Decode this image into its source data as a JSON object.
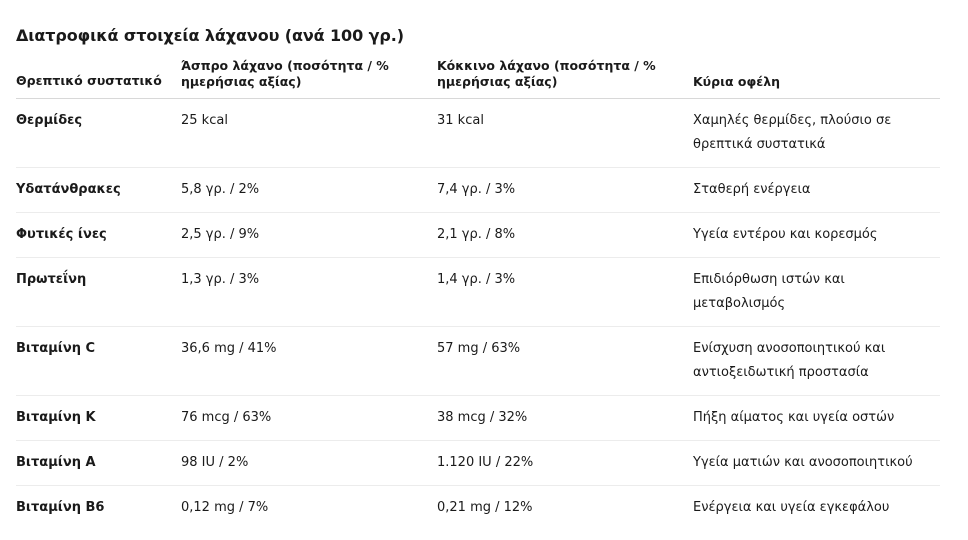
{
  "title": "Διατροφικά στοιχεία λάχανου (ανά 100 γρ.)",
  "columns": [
    "Θρεπτικό συστατικό",
    "Άσπρο λάχανο (ποσότητα / % ημερήσιας αξίας)",
    "Κόκκινο λάχανο (ποσότητα / % ημερήσιας αξίας)",
    "Κύρια οφέλη"
  ],
  "rows": [
    {
      "nutrient": "Θερμίδες",
      "white": "25 kcal",
      "red": "31 kcal",
      "benefit": "Χαμηλές θερμίδες, πλούσιο σε θρεπτικά συστατικά"
    },
    {
      "nutrient": "Υδατάνθρακες",
      "white": "5,8 γρ. / 2%",
      "red": "7,4 γρ. / 3%",
      "benefit": "Σταθερή ενέργεια"
    },
    {
      "nutrient": "Φυτικές ίνες",
      "white": "2,5 γρ. / 9%",
      "red": "2,1 γρ. / 8%",
      "benefit": "Υγεία εντέρου και κορεσμός"
    },
    {
      "nutrient": "Πρωτεΐνη",
      "white": "1,3 γρ. / 3%",
      "red": "1,4 γρ. / 3%",
      "benefit": "Επιδιόρθωση ιστών και μεταβολισμός"
    },
    {
      "nutrient": "Βιταμίνη C",
      "white": "36,6 mg / 41%",
      "red": "57 mg / 63%",
      "benefit": "Ενίσχυση ανοσοποιητικού και αντιοξειδωτική προστασία"
    },
    {
      "nutrient": "Βιταμίνη K",
      "white": "76 mcg / 63%",
      "red": "38 mcg / 32%",
      "benefit": "Πήξη αίματος και υγεία οστών"
    },
    {
      "nutrient": "Βιταμίνη A",
      "white": "98 IU / 2%",
      "red": "1.120 IU / 22%",
      "benefit": "Υγεία ματιών και ανοσοποιητικού"
    },
    {
      "nutrient": "Βιταμίνη B6",
      "white": "0,12 mg / 7%",
      "red": "0,21 mg / 12%",
      "benefit": "Ενέργεια και υγεία εγκεφάλου"
    }
  ]
}
